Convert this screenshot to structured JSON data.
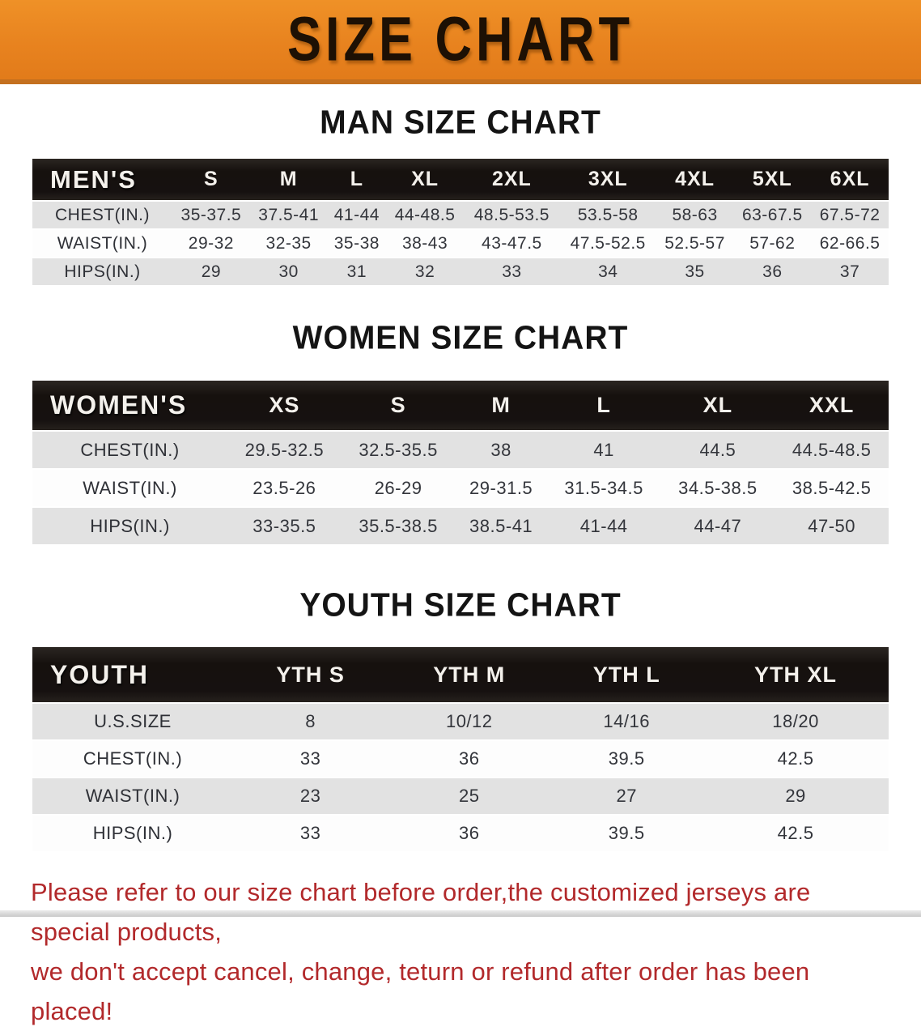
{
  "banner": {
    "title": "SIZE CHART"
  },
  "colors": {
    "banner_bg": "#E8831F",
    "banner_border": "#C4701F",
    "header_bar": "#161110",
    "row_alt": "#E2E2E2",
    "row_base": "#FDFDFD",
    "footer_text": "#B2292B"
  },
  "sections": [
    {
      "id": "men",
      "heading": "MAN SIZE CHART",
      "corner_label": "MEN'S",
      "columns": [
        "S",
        "M",
        "L",
        "XL",
        "2XL",
        "3XL",
        "4XL",
        "5XL",
        "6XL"
      ],
      "rows": [
        {
          "label": "CHEST(IN.)",
          "values": [
            "35-37.5",
            "37.5-41",
            "41-44",
            "44-48.5",
            "48.5-53.5",
            "53.5-58",
            "58-63",
            "63-67.5",
            "67.5-72"
          ]
        },
        {
          "label": "WAIST(IN.)",
          "values": [
            "29-32",
            "32-35",
            "35-38",
            "38-43",
            "43-47.5",
            "47.5-52.5",
            "52.5-57",
            "57-62",
            "62-66.5"
          ]
        },
        {
          "label": "HIPS(IN.)",
          "values": [
            "29",
            "30",
            "31",
            "32",
            "33",
            "34",
            "35",
            "36",
            "37"
          ]
        }
      ]
    },
    {
      "id": "women",
      "heading": "WOMEN SIZE CHART",
      "corner_label": "WOMEN'S",
      "columns": [
        "XS",
        "S",
        "M",
        "L",
        "XL",
        "XXL"
      ],
      "rows": [
        {
          "label": "CHEST(IN.)",
          "values": [
            "29.5-32.5",
            "32.5-35.5",
            "38",
            "41",
            "44.5",
            "44.5-48.5"
          ]
        },
        {
          "label": "WAIST(IN.)",
          "values": [
            "23.5-26",
            "26-29",
            "29-31.5",
            "31.5-34.5",
            "34.5-38.5",
            "38.5-42.5"
          ]
        },
        {
          "label": "HIPS(IN.)",
          "values": [
            "33-35.5",
            "35.5-38.5",
            "38.5-41",
            "41-44",
            "44-47",
            "47-50"
          ]
        }
      ]
    },
    {
      "id": "youth",
      "heading": "YOUTH SIZE CHART",
      "corner_label": "YOUTH",
      "columns": [
        "YTH S",
        "YTH M",
        "YTH L",
        "YTH XL"
      ],
      "rows": [
        {
          "label": "U.S.SIZE",
          "values": [
            "8",
            "10/12",
            "14/16",
            "18/20"
          ]
        },
        {
          "label": "CHEST(IN.)",
          "values": [
            "33",
            "36",
            "39.5",
            "42.5"
          ]
        },
        {
          "label": "WAIST(IN.)",
          "values": [
            "23",
            "25",
            "27",
            "29"
          ]
        },
        {
          "label": "HIPS(IN.)",
          "values": [
            "33",
            "36",
            "39.5",
            "42.5"
          ]
        }
      ]
    }
  ],
  "footer": {
    "line1": "Please refer to our size chart before order,the customized jerseys are special products,",
    "line2": "we don't accept cancel, change, teturn or refund after order has been placed!"
  }
}
